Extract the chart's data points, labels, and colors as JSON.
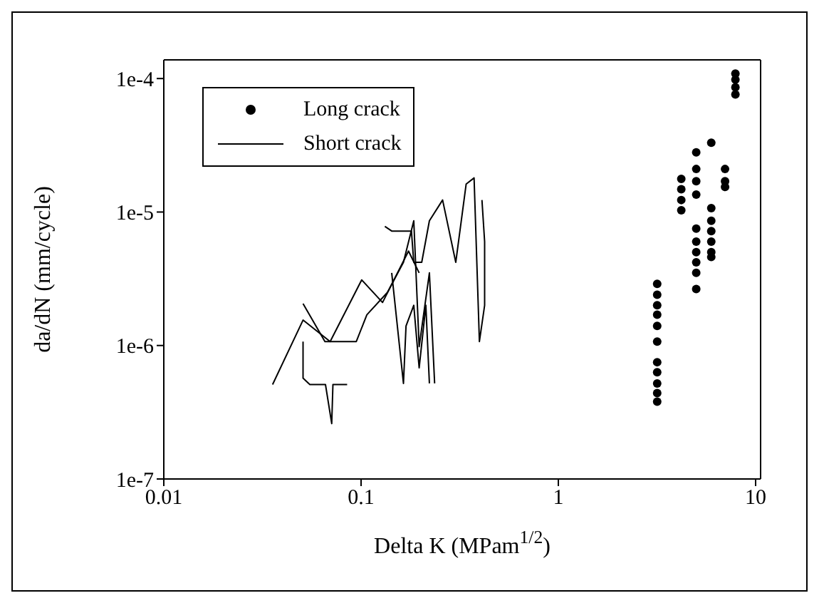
{
  "chart_data": {
    "type": "scatter",
    "xlabel": "Delta K (MPam$^{1/2}$)",
    "ylabel": "da/dN (mm/cycle)",
    "log": "xy",
    "xlim": [
      0.01,
      10.6
    ],
    "ylim": [
      1e-07,
      0.000138
    ],
    "xticks": [
      0.01,
      0.1,
      1,
      10
    ],
    "yticks": [
      {
        "value": 1e-07,
        "label": "1e-7"
      },
      {
        "value": 1e-06,
        "label": "1e-6"
      },
      {
        "value": 1e-05,
        "label": "1e-5"
      },
      {
        "value": 0.0001,
        "label": "1e-4"
      }
    ],
    "legend": "top left",
    "series": [
      {
        "name": "Long crack",
        "marker": "circle",
        "color": "#000000",
        "x": [
          3.17,
          3.17,
          3.17,
          3.17,
          3.17,
          3.17,
          3.17,
          3.17,
          3.17,
          3.17,
          3.17,
          4.2,
          4.2,
          4.2,
          4.2,
          5.0,
          5.0,
          5.0,
          5.0,
          5.0,
          5.0,
          5.0,
          5.0,
          5.0,
          5.0,
          5.96,
          5.96,
          5.96,
          5.96,
          5.96,
          5.96,
          5.96,
          7.0,
          7.0,
          7.0,
          7.9,
          7.9,
          7.9,
          7.9
        ],
        "values": [
          2.9e-06,
          2.4e-06,
          2e-06,
          1.7e-06,
          1.4e-06,
          1.07e-06,
          7.5e-07,
          6.3e-07,
          5.2e-07,
          4.4e-07,
          3.8e-07,
          1.77e-05,
          1.48e-05,
          1.23e-05,
          1.03e-05,
          2.8e-05,
          2.1e-05,
          1.7e-05,
          1.35e-05,
          7.5e-06,
          6e-06,
          5e-06,
          4.2e-06,
          3.5e-06,
          2.65e-06,
          3.3e-05,
          1.07e-05,
          8.6e-06,
          7.2e-06,
          6e-06,
          5e-06,
          4.6e-06,
          2.1e-05,
          1.7e-05,
          1.54e-05,
          0.000109,
          9.8e-05,
          8.6e-05,
          7.6e-05
        ]
      },
      {
        "name": "Short crack",
        "type": "line",
        "marker": "none",
        "line_style": "solid",
        "color": "#000000",
        "x": [
          0.0356,
          0.0508,
          0.0697,
          0.1007,
          0.1285,
          0.174,
          0.197
        ],
        "values": [
          5.1e-07,
          1.55e-06,
          1.07e-06,
          3.1e-06,
          2.1e-06,
          5.1e-06,
          3.5e-06
        ]
      },
      {
        "type": "line",
        "marker": "none",
        "line_style": "solid",
        "color": "#000000",
        "x": [
          0.0508,
          0.0508,
          0.055,
          0.066,
          0.071,
          0.072,
          0.085
        ],
        "values": [
          1.07e-06,
          5.7e-07,
          5.1e-07,
          5.1e-07,
          2.6e-07,
          5.1e-07,
          5.1e-07
        ]
      },
      {
        "type": "line",
        "marker": "none",
        "line_style": "solid",
        "color": "#000000",
        "x": [
          0.0508,
          0.0656,
          0.0946,
          0.107,
          0.136,
          0.164,
          0.185,
          0.197,
          0.222,
          0.236
        ],
        "values": [
          2.06e-06,
          1.07e-06,
          1.07e-06,
          1.7e-06,
          2.5e-06,
          4.2e-06,
          8.6e-06,
          9.8e-07,
          3.5e-06,
          5.2e-07
        ]
      },
      {
        "type": "line",
        "marker": "none",
        "line_style": "solid",
        "color": "#000000",
        "x": [
          0.132,
          0.143,
          0.18,
          0.185,
          0.203,
          0.222,
          0.259,
          0.302,
          0.341,
          0.374,
          0.398,
          0.423,
          0.423,
          0.41
        ],
        "values": [
          7.8e-06,
          7.2e-06,
          7.2e-06,
          4.2e-06,
          4.2e-06,
          8.6e-06,
          1.23e-05,
          4.2e-06,
          1.62e-05,
          1.8e-05,
          1.07e-06,
          2e-06,
          6e-06,
          1.23e-05
        ]
      },
      {
        "type": "line",
        "marker": "none",
        "line_style": "solid",
        "color": "#000000",
        "x": [
          0.143,
          0.164,
          0.169,
          0.185,
          0.197,
          0.213,
          0.222
        ],
        "values": [
          3.5e-06,
          5.2e-07,
          1.4e-06,
          2e-06,
          6.8e-07,
          2e-06,
          5.2e-07
        ]
      }
    ]
  }
}
